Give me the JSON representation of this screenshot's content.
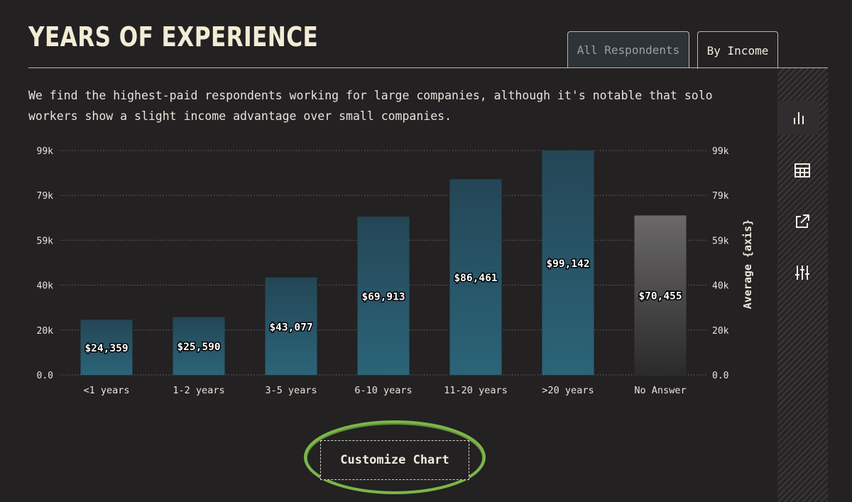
{
  "header": {
    "title": "YEARS OF EXPERIENCE",
    "tabs": [
      {
        "label": "All Respondents",
        "active": false
      },
      {
        "label": "By Income",
        "active": true
      }
    ]
  },
  "description": "We find the highest-paid respondents working for large companies, although it's notable that solo workers show a slight income advantage over small companies.",
  "sidebar": {
    "buttons": [
      {
        "icon": "bar-chart-icon",
        "active": true
      },
      {
        "icon": "table-icon",
        "active": false
      },
      {
        "icon": "external-link-icon",
        "active": false
      },
      {
        "icon": "sliders-icon",
        "active": false
      }
    ]
  },
  "chart_data": {
    "type": "bar",
    "categories": [
      "<1 years",
      "1-2 years",
      "3-5 years",
      "6-10 years",
      "11-20 years",
      ">20 years",
      "No Answer"
    ],
    "values": [
      24359,
      25590,
      43077,
      69913,
      86461,
      99142,
      70455
    ],
    "data_labels": [
      "$24,359",
      "$25,590",
      "$43,077",
      "$69,913",
      "$86,461",
      "$99,142",
      "$70,455"
    ],
    "y_ticks": [
      "0.0",
      "20k",
      "40k",
      "59k",
      "79k",
      "99k"
    ],
    "ylim": [
      0,
      99142
    ],
    "ylabel_right": "Average {axis}",
    "grid": true,
    "colors": {
      "bar_top": "#244656",
      "bar_bottom": "#2b6478",
      "muted_top": "#6a6869",
      "muted_bottom": "#2b2a2b",
      "grid": "#6b6766",
      "tick_text": "#e8e4da"
    },
    "muted_categories": [
      "No Answer"
    ]
  },
  "actions": {
    "customize_label": "Customize Chart",
    "highlight_color": "#7ab648"
  }
}
